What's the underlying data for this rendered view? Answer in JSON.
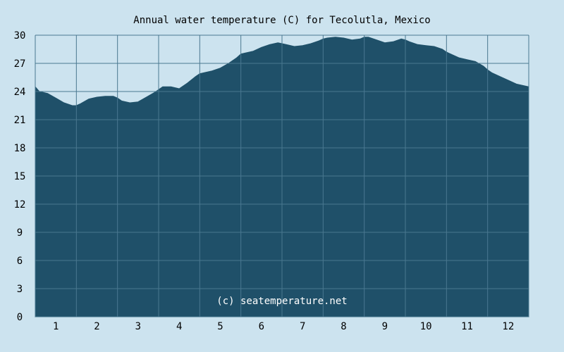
{
  "title": "Annual water temperature (C) for Tecolutla, Mexico",
  "watermark": "(c) seatemperature.net",
  "colors": {
    "background": "#cce3ef",
    "area": "#1f5069",
    "grid": "#4a7890",
    "axis_text": "#000000",
    "watermark": "#ffffff"
  },
  "chart_data": {
    "type": "area",
    "title": "Annual water temperature (C) for Tecolutla, Mexico",
    "xlabel": "",
    "ylabel": "",
    "ylim": [
      0,
      30
    ],
    "xlim": [
      0.5,
      12.5
    ],
    "y_ticks": [
      "0",
      "3",
      "6",
      "9",
      "12",
      "15",
      "18",
      "21",
      "24",
      "27",
      "30"
    ],
    "x_ticks": [
      "1",
      "2",
      "3",
      "4",
      "5",
      "6",
      "7",
      "8",
      "9",
      "10",
      "11",
      "12"
    ],
    "grid": true,
    "legend": "none",
    "series": [
      {
        "x": [
          0.5,
          0.6,
          0.8,
          1.0,
          1.2,
          1.4,
          1.5,
          1.6,
          1.8,
          2.0,
          2.2,
          2.4,
          2.5,
          2.6,
          2.8,
          3.0,
          3.2,
          3.4,
          3.5,
          3.6,
          3.8,
          4.0,
          4.2,
          4.4,
          4.5,
          4.6,
          4.8,
          5.0,
          5.2,
          5.4,
          5.5,
          5.6,
          5.8,
          6.0,
          6.2,
          6.4,
          6.5,
          6.6,
          6.8,
          7.0,
          7.2,
          7.4,
          7.5,
          7.6,
          7.8,
          8.0,
          8.2,
          8.4,
          8.5,
          8.6,
          8.8,
          9.0,
          9.2,
          9.4,
          9.5,
          9.6,
          9.8,
          10.0,
          10.2,
          10.4,
          10.5,
          10.6,
          10.8,
          11.0,
          11.2,
          11.4,
          11.5,
          11.6,
          11.8,
          12.0,
          12.2,
          12.4,
          12.5
        ],
        "values": [
          24.5,
          24.0,
          23.8,
          23.3,
          22.8,
          22.5,
          22.5,
          22.7,
          23.2,
          23.4,
          23.5,
          23.5,
          23.3,
          23.0,
          22.8,
          22.9,
          23.4,
          23.9,
          24.2,
          24.5,
          24.5,
          24.3,
          24.9,
          25.6,
          25.9,
          26.0,
          26.2,
          26.5,
          27.0,
          27.6,
          28.0,
          28.1,
          28.3,
          28.7,
          29.0,
          29.2,
          29.1,
          29.0,
          28.8,
          28.9,
          29.1,
          29.4,
          29.6,
          29.7,
          29.8,
          29.7,
          29.5,
          29.6,
          29.8,
          29.8,
          29.5,
          29.2,
          29.3,
          29.6,
          29.5,
          29.3,
          29.0,
          28.9,
          28.8,
          28.5,
          28.2,
          28.0,
          27.6,
          27.4,
          27.2,
          26.7,
          26.3,
          26.0,
          25.6,
          25.2,
          24.8,
          24.6,
          24.5
        ]
      }
    ]
  }
}
